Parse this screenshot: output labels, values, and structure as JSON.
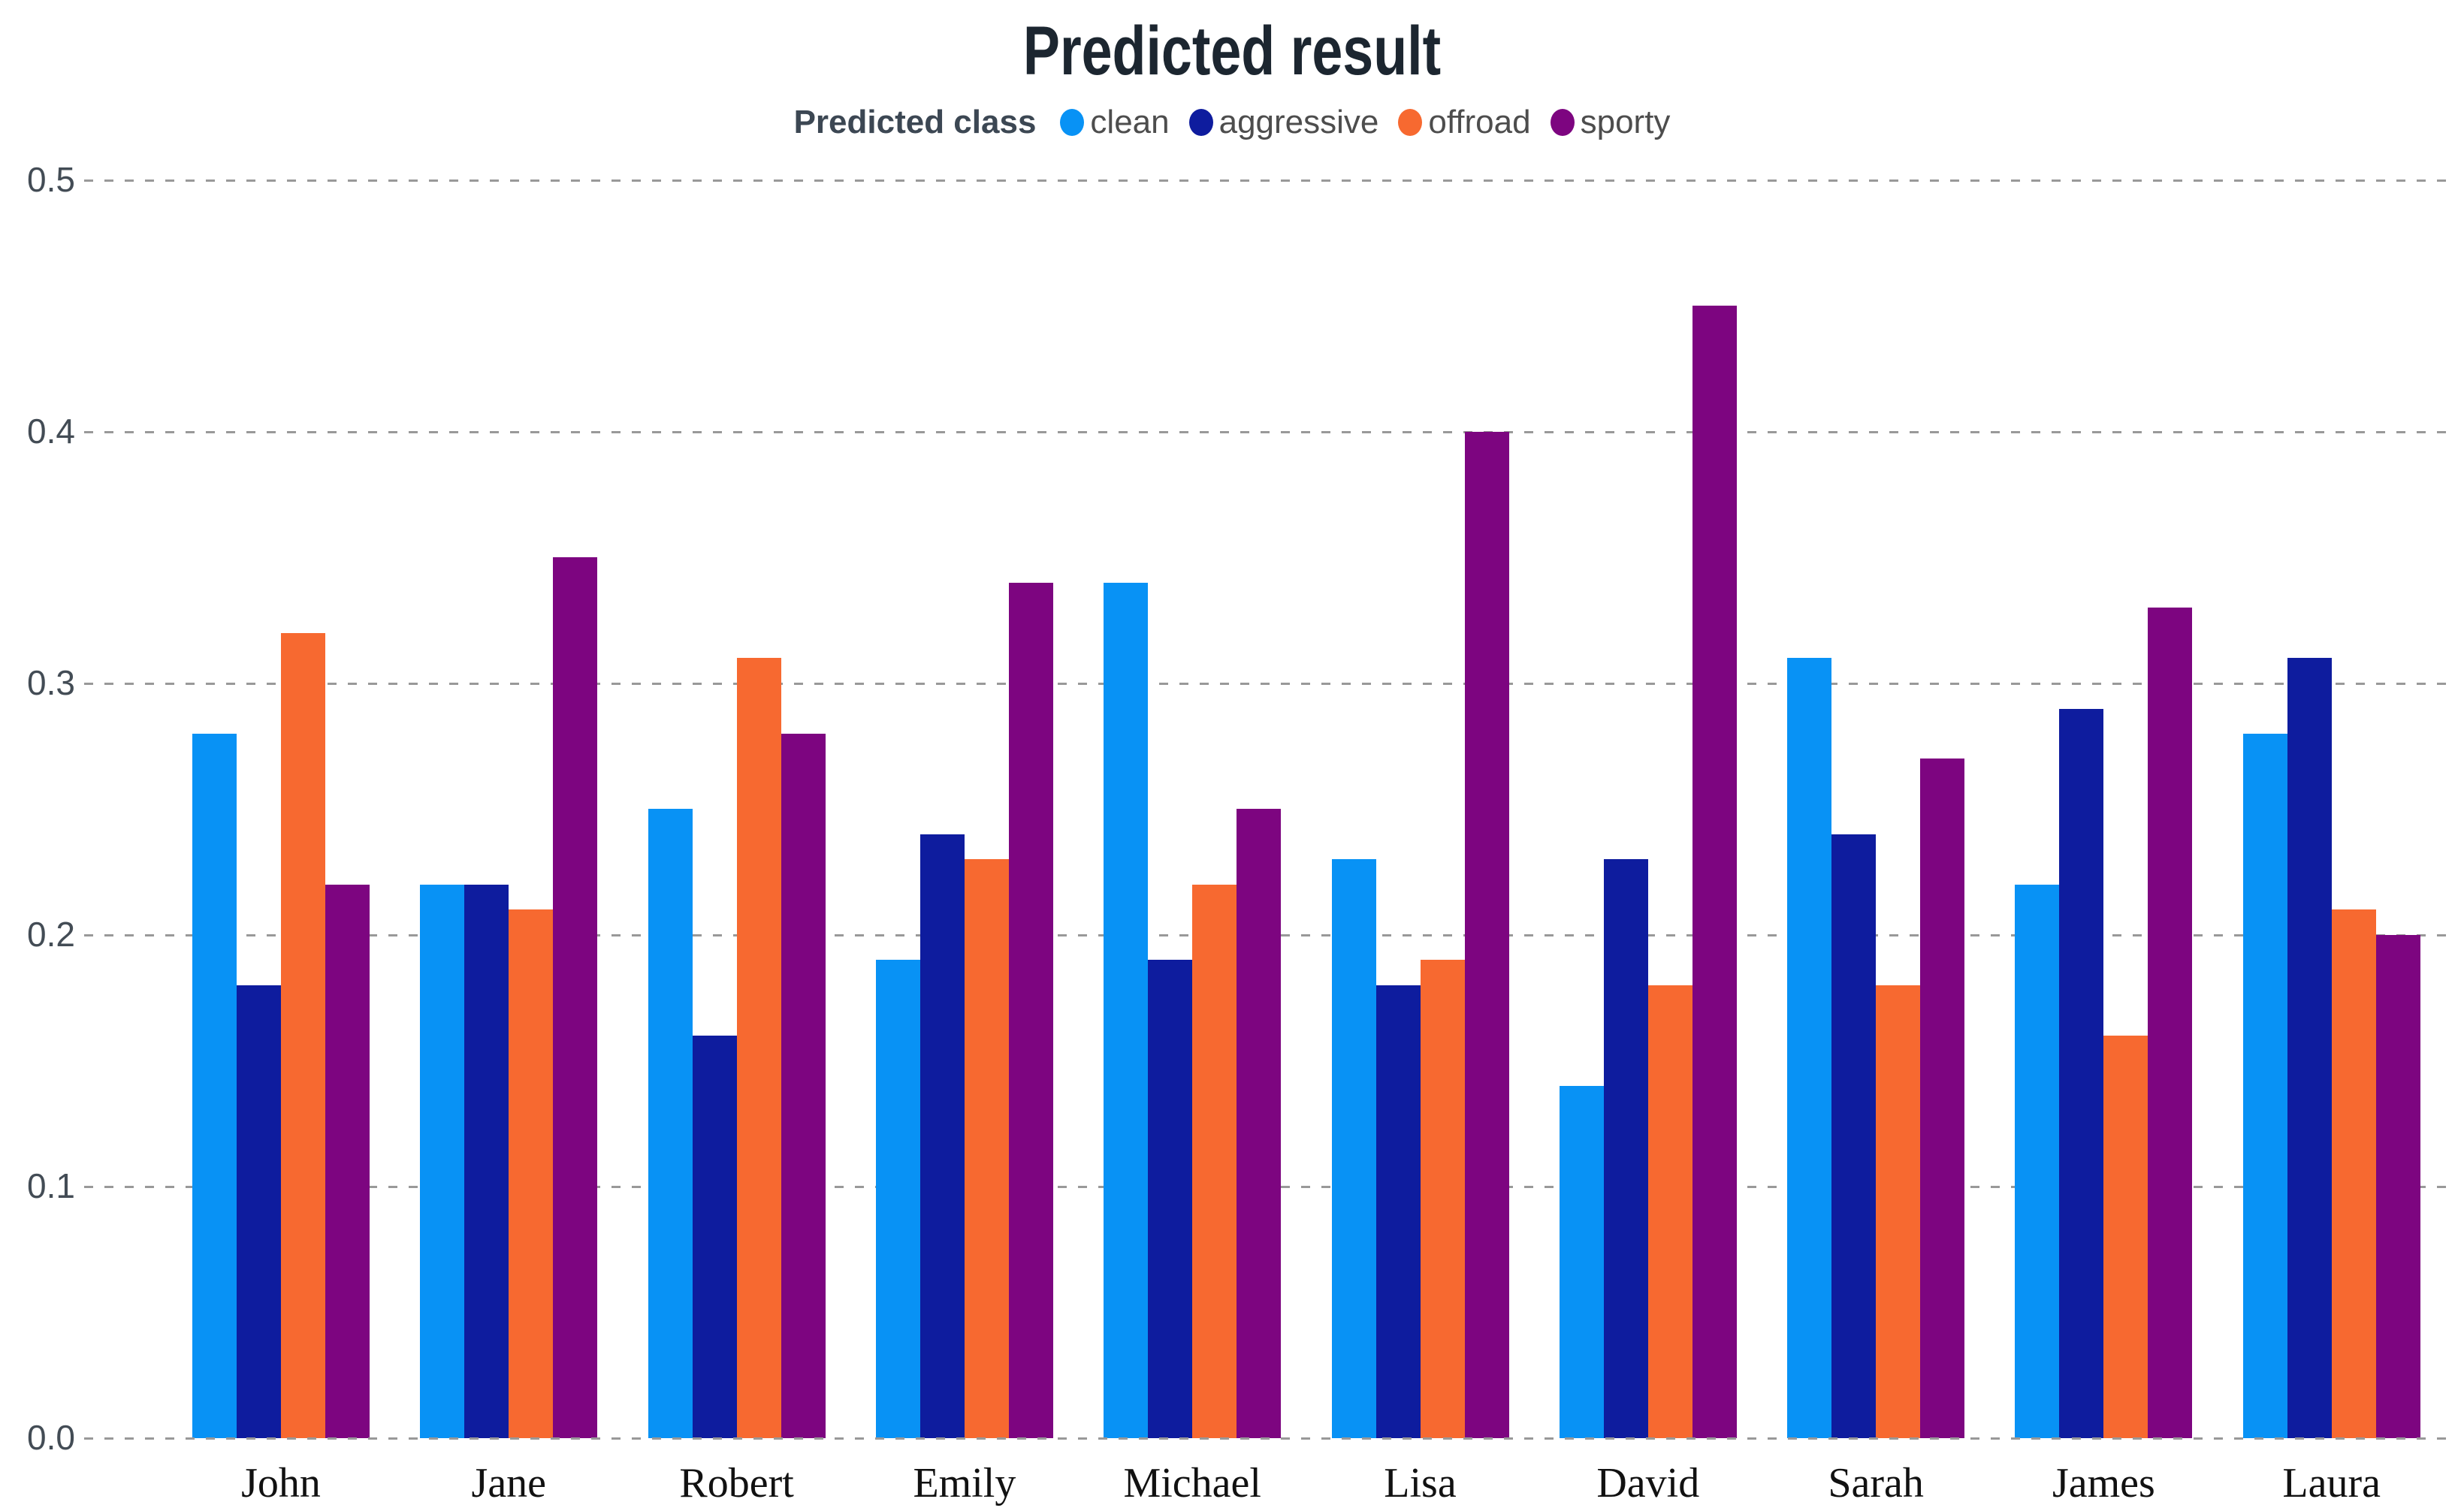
{
  "title": "Predicted result",
  "legend": {
    "label": "Predicted class",
    "items": [
      {
        "label": "clean",
        "color": "#0892f5"
      },
      {
        "label": "aggressive",
        "color": "#0e1c9e"
      },
      {
        "label": "offroad",
        "color": "#f76930"
      },
      {
        "label": "sporty",
        "color": "#7d0580"
      }
    ]
  },
  "chart_data": {
    "type": "bar",
    "title": "Predicted result",
    "categories": [
      "John",
      "Jane",
      "Robert",
      "Emily",
      "Michael",
      "Lisa",
      "David",
      "Sarah",
      "James",
      "Laura"
    ],
    "series": [
      {
        "name": "clean",
        "color": "#0892f5",
        "values": [
          0.28,
          0.22,
          0.25,
          0.19,
          0.34,
          0.23,
          0.14,
          0.31,
          0.22,
          0.28
        ]
      },
      {
        "name": "aggressive",
        "color": "#0e1c9e",
        "values": [
          0.18,
          0.22,
          0.16,
          0.24,
          0.19,
          0.18,
          0.23,
          0.24,
          0.29,
          0.31
        ]
      },
      {
        "name": "offroad",
        "color": "#f76930",
        "values": [
          0.32,
          0.21,
          0.31,
          0.23,
          0.22,
          0.19,
          0.18,
          0.18,
          0.16,
          0.21
        ]
      },
      {
        "name": "sporty",
        "color": "#7d0580",
        "values": [
          0.22,
          0.35,
          0.28,
          0.34,
          0.25,
          0.4,
          0.45,
          0.27,
          0.33,
          0.2
        ]
      }
    ],
    "xlabel": "",
    "ylabel": "",
    "ylim": [
      0.0,
      0.5
    ],
    "yticks": [
      0.0,
      0.1,
      0.2,
      0.3,
      0.4,
      0.5
    ],
    "ytick_labels": [
      "0.0",
      "0.1",
      "0.2",
      "0.3",
      "0.4",
      "0.5"
    ],
    "grid": "horizontal-dashed",
    "legend_position": "top-center"
  },
  "colors": {
    "background": "#ffffff",
    "title_text": "#1c2630",
    "legend_label_text": "#3c4753",
    "legend_item_text": "#4d4d4d",
    "ytick_text": "#434c55",
    "xtick_text": "#111111",
    "gridline": "#999999"
  }
}
